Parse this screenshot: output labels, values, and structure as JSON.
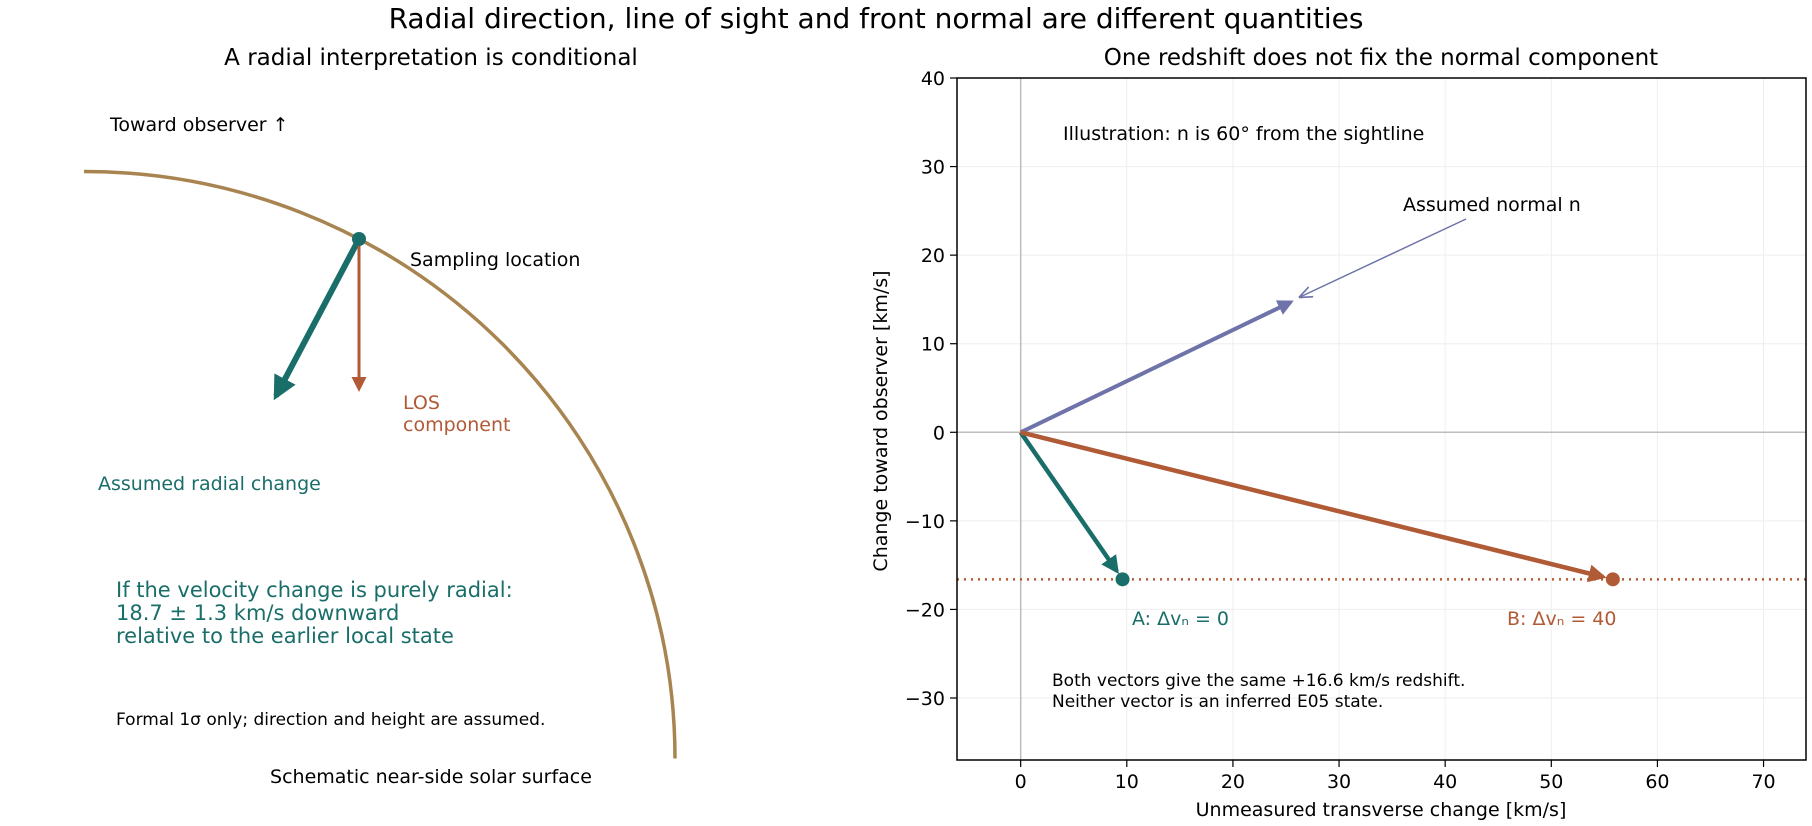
{
  "figure": {
    "suptitle": "Radial direction, line of sight and front normal are different quantities"
  },
  "colors": {
    "teal": "#1a6e6a",
    "rust": "#b05a36",
    "purple": "#6e73aa",
    "limb": "#a88450",
    "axis_zero": "#bdbdbd",
    "grid": "#eeeeee",
    "text": "#000000"
  },
  "left_panel": {
    "title": "A radial interpretation is conditional",
    "toward_observer": "Toward observer ↑",
    "sampling_location": "Sampling location",
    "los_label_line1": "LOS",
    "los_label_line2": "component",
    "radial_label": "Assumed radial change",
    "result_line1": "If the velocity change is purely radial:",
    "result_line2": "18.7 ± 1.3 km/s downward",
    "result_line3": "relative to the earlier local state",
    "caveat": "Formal 1σ only; direction and height are assumed.",
    "surface_label": "Schematic near-side solar surface"
  },
  "chart_data": {
    "type": "scatter",
    "title": "One redshift does not fix the normal component",
    "xlabel": "Unmeasured transverse change [km/s]",
    "ylabel": "Change toward observer [km/s]",
    "xlim": [
      -6,
      74
    ],
    "ylim": [
      -37,
      40
    ],
    "xticks": [
      0,
      10,
      20,
      30,
      40,
      50,
      60,
      70
    ],
    "yticks": [
      -30,
      -20,
      -10,
      0,
      10,
      20,
      30,
      40
    ],
    "grid": true,
    "observed_los": -16.6,
    "normal_vector": {
      "x": 25.8,
      "y": 14.9,
      "label": "Assumed normal n"
    },
    "points": [
      {
        "name": "A",
        "x": 9.6,
        "y": -16.6,
        "label": "A: Δvₙ = 0"
      },
      {
        "name": "B",
        "x": 55.8,
        "y": -16.6,
        "label": "B: Δvₙ = 40"
      }
    ],
    "annotations": {
      "illustration": "Illustration: n is 60° from the sightline",
      "note_line1": "Both vectors give the same +16.6 km/s redshift.",
      "note_line2": "Neither vector is an inferred E05 state."
    }
  }
}
